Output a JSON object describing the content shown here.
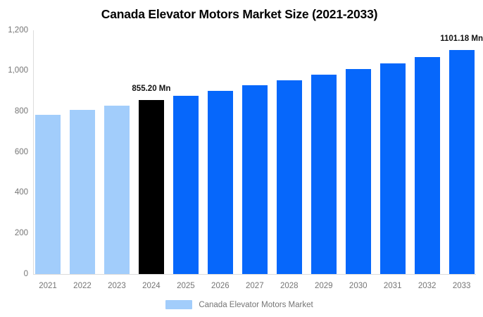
{
  "title": "Canada Elevator Motors Market Size (2021-2033)",
  "legend": {
    "label": "Canada Elevator Motors Market",
    "swatch_color": "#A2CDFB"
  },
  "colors": {
    "historical_bar": "#A2CDFB",
    "base_year_bar": "#000000",
    "forecast_bar": "#0667FB",
    "axis_text": "#757575",
    "axis_line": "#dcdcdc",
    "value_label_text": "#111111"
  },
  "chart_data": {
    "type": "bar",
    "title": "Canada Elevator Motors Market Size (2021-2033)",
    "unit": "Mn",
    "categories": [
      "2021",
      "2022",
      "2023",
      "2024",
      "2025",
      "2026",
      "2027",
      "2028",
      "2029",
      "2030",
      "2031",
      "2032",
      "2033"
    ],
    "values": [
      785,
      807,
      830,
      855.2,
      877,
      902,
      928,
      953,
      980,
      1008,
      1037,
      1067,
      1101.18
    ],
    "bar_colors": [
      "#A2CDFB",
      "#A2CDFB",
      "#A2CDFB",
      "#000000",
      "#0667FB",
      "#0667FB",
      "#0667FB",
      "#0667FB",
      "#0667FB",
      "#0667FB",
      "#0667FB",
      "#0667FB",
      "#0667FB"
    ],
    "annotations": [
      {
        "category": "2024",
        "label": "855.20 Mn"
      },
      {
        "category": "2033",
        "label": "1101.18 Mn"
      }
    ],
    "xlabel": "",
    "ylabel": "",
    "ylim": [
      0,
      1200
    ],
    "y_ticks": [
      {
        "value": 0,
        "label": "0"
      },
      {
        "value": 200,
        "label": "200"
      },
      {
        "value": 400,
        "label": "400"
      },
      {
        "value": 600,
        "label": "600"
      },
      {
        "value": 800,
        "label": "800"
      },
      {
        "value": 1000,
        "label": "1,000"
      },
      {
        "value": 1200,
        "label": "1,200"
      }
    ],
    "grid": false,
    "legend_position": "bottom"
  }
}
